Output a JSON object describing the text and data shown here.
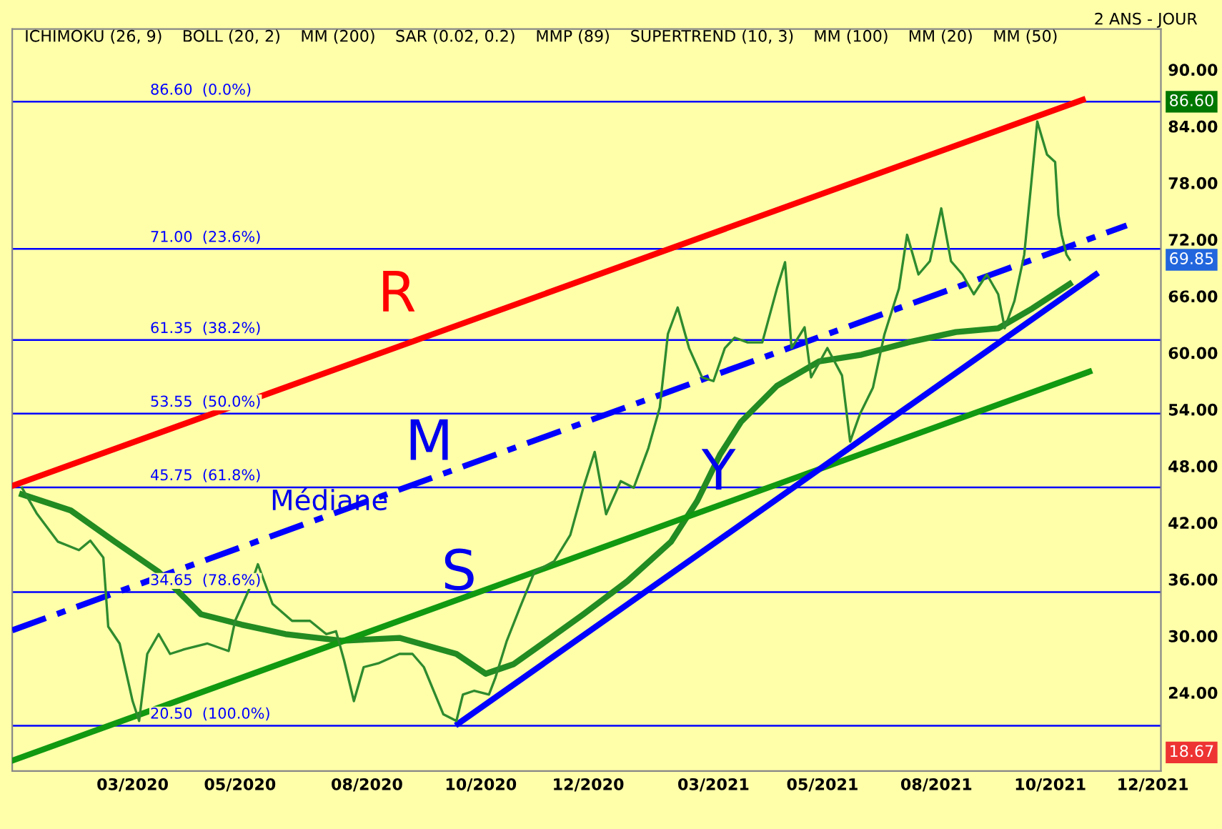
{
  "chart_data": {
    "type": "line",
    "subtitle": "2 ANS - JOUR",
    "x": [
      "2020-01-17",
      "2020-01-26",
      "2020-02-08",
      "2020-02-21",
      "2020-02-28",
      "2020-03-07",
      "2020-03-10",
      "2020-03-17",
      "2020-03-25",
      "2020-03-29",
      "2020-04-03",
      "2020-04-10",
      "2020-04-17",
      "2020-04-26",
      "2020-05-10",
      "2020-05-23",
      "2020-05-27",
      "2020-06-05",
      "2020-06-10",
      "2020-06-19",
      "2020-07-01",
      "2020-07-12",
      "2020-07-22",
      "2020-07-28",
      "2020-08-02",
      "2020-08-08",
      "2020-08-14",
      "2020-08-23",
      "2020-09-05",
      "2020-09-13",
      "2020-09-20",
      "2020-10-02",
      "2020-10-10",
      "2020-10-14",
      "2020-10-21",
      "2020-10-30",
      "2020-11-03",
      "2020-11-10",
      "2020-11-18",
      "2020-11-27",
      "2020-12-09",
      "2020-12-19",
      "2020-12-27",
      "2021-01-03",
      "2021-01-10",
      "2021-01-19",
      "2021-01-27",
      "2021-02-05",
      "2021-02-12",
      "2021-02-17",
      "2021-02-23",
      "2021-03-02",
      "2021-03-10",
      "2021-03-17",
      "2021-03-24",
      "2021-03-30",
      "2021-04-07",
      "2021-04-16",
      "2021-04-25",
      "2021-04-30",
      "2021-05-04",
      "2021-05-12",
      "2021-05-16",
      "2021-05-26",
      "2021-06-04",
      "2021-06-09",
      "2021-06-15",
      "2021-06-23",
      "2021-06-30",
      "2021-07-09",
      "2021-07-14",
      "2021-07-21",
      "2021-07-28",
      "2021-08-04",
      "2021-08-10",
      "2021-08-17",
      "2021-08-24",
      "2021-09-01",
      "2021-09-08",
      "2021-09-12",
      "2021-09-18",
      "2021-09-24",
      "2021-09-28",
      "2021-10-02",
      "2021-10-08",
      "2021-10-13",
      "2021-10-15",
      "2021-10-17",
      "2021-10-20",
      "2021-10-22"
    ],
    "series": [
      {
        "color": "#2e8b2e",
        "values": [
          45.7,
          43.0,
          40.0,
          39.1,
          40.1,
          38.3,
          31.0,
          29.2,
          23.1,
          21.0,
          28.1,
          30.2,
          28.1,
          28.6,
          29.2,
          28.4,
          31.6,
          35.1,
          37.6,
          33.4,
          31.6,
          31.6,
          30.2,
          30.5,
          27.4,
          23.1,
          26.7,
          27.1,
          28.1,
          28.1,
          26.7,
          21.7,
          21.0,
          23.8,
          24.2,
          23.8,
          25.6,
          29.5,
          33.0,
          36.8,
          37.9,
          40.7,
          45.7,
          49.5,
          42.9,
          46.4,
          45.7,
          49.9,
          54.2,
          62.0,
          64.8,
          60.5,
          57.4,
          57.0,
          60.5,
          61.6,
          61.1,
          61.1,
          66.8,
          69.6,
          60.5,
          62.7,
          57.4,
          60.5,
          57.6,
          50.6,
          53.5,
          56.3,
          61.9,
          66.8,
          72.5,
          68.3,
          69.7,
          75.3,
          69.7,
          68.3,
          66.2,
          68.3,
          66.2,
          62.6,
          65.5,
          70.4,
          77.4,
          84.5,
          81.0,
          80.2,
          74.6,
          72.5,
          70.4,
          69.85
        ]
      },
      {
        "color": "#228b22",
        "x": [
          "2020-01-17",
          "2020-02-16",
          "2020-03-14",
          "2020-04-10",
          "2020-05-06",
          "2020-05-31",
          "2020-06-27",
          "2020-08-01",
          "2020-09-05",
          "2020-10-10",
          "2020-10-28",
          "2020-11-14",
          "2020-12-02",
          "2020-12-27",
          "2021-01-23",
          "2021-02-19",
          "2021-03-07",
          "2021-03-21",
          "2021-04-03",
          "2021-04-25",
          "2021-05-21",
          "2021-06-16",
          "2021-07-17",
          "2021-08-13",
          "2021-09-08",
          "2021-09-29",
          "2021-10-22"
        ],
        "values": [
          45.0,
          43.3,
          40.0,
          36.8,
          32.3,
          31.2,
          30.2,
          29.5,
          29.8,
          28.1,
          26.0,
          27.0,
          29.2,
          32.3,
          35.8,
          40.0,
          44.3,
          49.2,
          52.7,
          56.5,
          59.1,
          59.8,
          61.2,
          62.2,
          62.6,
          64.7,
          67.3
        ]
      },
      {
        "color": "#ff0000",
        "x": [
          "2020-01-11",
          "2021-10-30"
        ],
        "values": [
          45.9,
          86.8
        ]
      },
      {
        "color": "#0000ff",
        "x": [
          "2020-01-11",
          "2021-11-26"
        ],
        "values": [
          30.6,
          73.5
        ],
        "line_style": "dashed"
      },
      {
        "color": "#119911",
        "x": [
          "2020-01-11",
          "2021-11-03"
        ],
        "values": [
          16.8,
          58.0
        ]
      },
      {
        "color": "#0000ff",
        "x": [
          "2020-10-11",
          "2021-11-07"
        ],
        "values": [
          20.7,
          68.3
        ]
      }
    ],
    "xlim": [
      "2020-01-11",
      "2021-12-17"
    ],
    "ylim": [
      15.7,
      94.3
    ],
    "xticks": [
      {
        "value": "2020-03-25",
        "label": "03/2020"
      },
      {
        "value": "2020-05-30",
        "label": "05/2020"
      },
      {
        "value": "2020-08-16",
        "label": "08/2020"
      },
      {
        "value": "2020-10-25",
        "label": "10/2020"
      },
      {
        "value": "2020-12-30",
        "label": "12/2020"
      },
      {
        "value": "2021-03-17",
        "label": "03/2021"
      },
      {
        "value": "2021-05-23",
        "label": "05/2021"
      },
      {
        "value": "2021-08-01",
        "label": "08/2021"
      },
      {
        "value": "2021-10-10",
        "label": "10/2021"
      },
      {
        "value": "2021-12-12",
        "label": "12/2021"
      }
    ],
    "yticks": [
      {
        "value": 24,
        "label": "24.00"
      },
      {
        "value": 30,
        "label": "30.00"
      },
      {
        "value": 36,
        "label": "36.00"
      },
      {
        "value": 42,
        "label": "42.00"
      },
      {
        "value": 48,
        "label": "48.00"
      },
      {
        "value": 54,
        "label": "54.00"
      },
      {
        "value": 60,
        "label": "60.00"
      },
      {
        "value": 66,
        "label": "66.00"
      },
      {
        "value": 72,
        "label": "72.00"
      },
      {
        "value": 78,
        "label": "78.00"
      },
      {
        "value": 84,
        "label": "84.00"
      },
      {
        "value": 90,
        "label": "90.00"
      }
    ],
    "ref_lines": [
      {
        "axis": "y",
        "value": 86.6,
        "label": "86.60  (0.0%)",
        "color": "#0000ff"
      },
      {
        "axis": "y",
        "value": 71.0,
        "label": "71.00  (23.6%)",
        "color": "#0000ff"
      },
      {
        "axis": "y",
        "value": 61.35,
        "label": "61.35  (38.2%)",
        "color": "#0000ff"
      },
      {
        "axis": "y",
        "value": 53.55,
        "label": "53.55  (50.0%)",
        "color": "#0000ff"
      },
      {
        "axis": "y",
        "value": 45.75,
        "label": "45.75  (61.8%)",
        "color": "#0000ff"
      },
      {
        "axis": "y",
        "value": 34.65,
        "label": "34.65  (78.6%)",
        "color": "#0000ff"
      },
      {
        "axis": "y",
        "value": 20.5,
        "label": "20.50  (100.0%)",
        "color": "#0000ff"
      }
    ],
    "annotations": [
      "ICHIMOKU (26, 9)",
      "BOLL (20, 2)",
      "MM (200)",
      "SAR (0.02, 0.2)",
      "MMP (89)",
      "SUPERTREND (10, 3)",
      "MM (100)",
      "MM (20)",
      "MM (50)",
      "R",
      "M",
      "S",
      "Y",
      "Médiane",
      "86.60",
      "69.85",
      "18.67"
    ],
    "grid": false,
    "legend": false
  }
}
